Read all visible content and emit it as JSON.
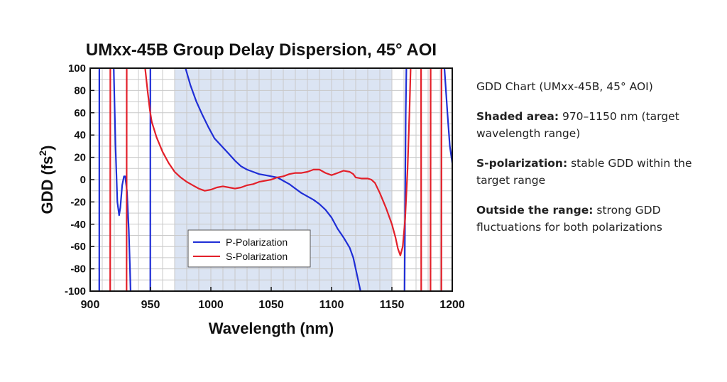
{
  "chart_data": {
    "type": "line",
    "title": "UMxx-45B Group Delay Dispersion, 45° AOI",
    "xlabel": "Wavelength (nm)",
    "ylabel": "GDD (fs",
    "ylabel_sup": "2",
    "ylabel_close": ")",
    "xlim": [
      900,
      1200
    ],
    "ylim": [
      -100,
      100
    ],
    "x_ticks": [
      900,
      950,
      1000,
      1050,
      1100,
      1150,
      1200
    ],
    "y_ticks": [
      -100,
      -80,
      -60,
      -40,
      -20,
      0,
      20,
      40,
      60,
      80,
      100
    ],
    "grid": true,
    "shaded_range": [
      970,
      1150
    ],
    "legend_position": "lower-left",
    "colors": {
      "shade": "#dbe4f3",
      "p": "#1f2ed6",
      "s": "#e3202a"
    },
    "series": [
      {
        "name": "P-Polarization",
        "color": "#1f2ed6",
        "segments": [
          [
            [
              907.5,
              -100
            ],
            [
              907.6,
              100
            ]
          ],
          [
            [
              919.5,
              100
            ],
            [
              921,
              30
            ],
            [
              922.5,
              -20
            ],
            [
              924,
              -32
            ],
            [
              925,
              -25
            ],
            [
              926.5,
              -5
            ],
            [
              928,
              3
            ],
            [
              929,
              3
            ],
            [
              930.5,
              -10
            ],
            [
              932,
              -45
            ],
            [
              933,
              -80
            ],
            [
              933.5,
              -100
            ]
          ],
          [
            [
              949.8,
              -100
            ],
            [
              949.9,
              100
            ]
          ],
          [
            [
              979,
              100
            ],
            [
              983,
              85
            ],
            [
              988,
              70
            ],
            [
              993,
              58
            ],
            [
              998,
              47
            ],
            [
              1003,
              37
            ],
            [
              1009,
              30
            ],
            [
              1015,
              23
            ],
            [
              1020,
              17
            ],
            [
              1025,
              12
            ],
            [
              1030,
              9
            ],
            [
              1035,
              7
            ],
            [
              1040,
              5
            ],
            [
              1045,
              4
            ],
            [
              1050,
              3
            ],
            [
              1055,
              2
            ],
            [
              1060,
              -1
            ],
            [
              1065,
              -4
            ],
            [
              1070,
              -8
            ],
            [
              1075,
              -12
            ],
            [
              1080,
              -15
            ],
            [
              1085,
              -18
            ],
            [
              1090,
              -22
            ],
            [
              1095,
              -27
            ],
            [
              1100,
              -34
            ],
            [
              1105,
              -44
            ],
            [
              1110,
              -52
            ],
            [
              1115,
              -61
            ],
            [
              1118,
              -70
            ],
            [
              1121,
              -85
            ],
            [
              1124,
              -100
            ]
          ],
          [
            [
              1160.5,
              -100
            ],
            [
              1161.5,
              60
            ],
            [
              1162,
              100
            ]
          ],
          [
            [
              1193.5,
              100
            ],
            [
              1196,
              60
            ],
            [
              1198,
              30
            ],
            [
              1200,
              15
            ]
          ]
        ]
      },
      {
        "name": "S-Polarization",
        "color": "#e3202a",
        "segments": [
          [
            [
              916.6,
              -100
            ],
            [
              916.7,
              100
            ]
          ],
          [
            [
              930.2,
              -100
            ],
            [
              930.3,
              100
            ]
          ],
          [
            [
              945.5,
              100
            ],
            [
              947.5,
              80
            ],
            [
              949.5,
              62
            ],
            [
              951,
              52
            ],
            [
              955,
              38
            ],
            [
              960,
              25
            ],
            [
              965,
              15
            ],
            [
              970,
              7
            ],
            [
              975,
              2
            ],
            [
              980,
              -2
            ],
            [
              985,
              -5
            ],
            [
              990,
              -8
            ],
            [
              995,
              -10
            ],
            [
              1000,
              -9
            ],
            [
              1005,
              -7
            ],
            [
              1010,
              -6
            ],
            [
              1015,
              -7
            ],
            [
              1020,
              -8
            ],
            [
              1025,
              -7
            ],
            [
              1030,
              -5
            ],
            [
              1035,
              -4
            ],
            [
              1040,
              -2
            ],
            [
              1045,
              -1
            ],
            [
              1050,
              0
            ],
            [
              1055,
              2
            ],
            [
              1060,
              3
            ],
            [
              1065,
              5
            ],
            [
              1070,
              6
            ],
            [
              1075,
              6
            ],
            [
              1080,
              7
            ],
            [
              1085,
              9
            ],
            [
              1090,
              9
            ],
            [
              1095,
              6
            ],
            [
              1100,
              4
            ],
            [
              1105,
              6
            ],
            [
              1110,
              8
            ],
            [
              1115,
              7
            ],
            [
              1118,
              5
            ],
            [
              1120,
              2
            ],
            [
              1125,
              1
            ],
            [
              1130,
              1
            ],
            [
              1133,
              0
            ],
            [
              1136,
              -3
            ],
            [
              1140,
              -12
            ],
            [
              1145,
              -25
            ],
            [
              1150,
              -40
            ],
            [
              1153,
              -52
            ],
            [
              1155,
              -62
            ],
            [
              1157,
              -68
            ],
            [
              1159,
              -60
            ],
            [
              1161,
              -35
            ],
            [
              1163,
              10
            ],
            [
              1164.5,
              60
            ],
            [
              1165.5,
              100
            ]
          ],
          [
            [
              1174.2,
              100
            ],
            [
              1174.3,
              -100
            ]
          ],
          [
            [
              1182,
              -100
            ],
            [
              1182.1,
              100
            ]
          ],
          [
            [
              1191,
              -100
            ],
            [
              1191.1,
              100
            ]
          ]
        ]
      }
    ]
  },
  "side_panel": {
    "heading": "GDD Chart (UMxx-45B, 45° AOI)",
    "shaded_label": "Shaded area:",
    "shaded_text": " 970–1150 nm (target wavelength range)",
    "s_label": "S-polarization:",
    "s_text": " stable GDD within the target range",
    "outside_label": "Outside the range:",
    "outside_text": " strong GDD fluctuations for both polarizations"
  }
}
